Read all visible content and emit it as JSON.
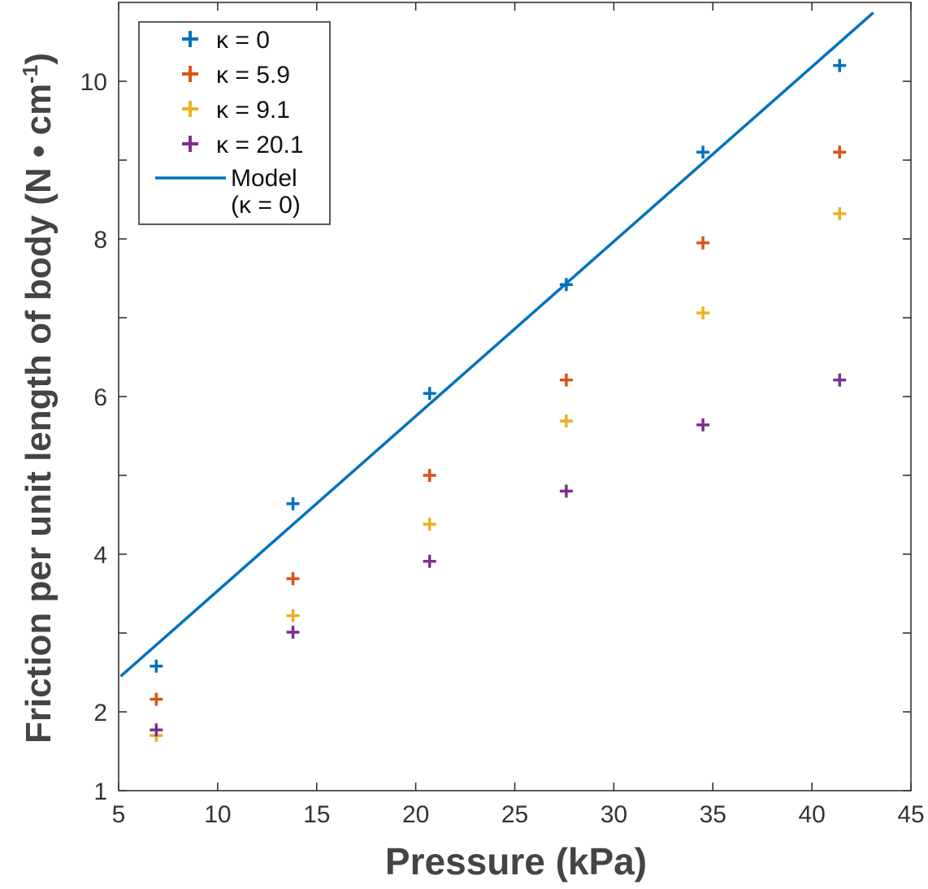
{
  "chart_data": {
    "type": "scatter",
    "xlabel": "Pressure (kPa)",
    "ylabel": "Friction per unit length of body (N • cm",
    "ylabel_superscript": "-1",
    "ylabel_close": ")",
    "xlim": [
      5,
      45
    ],
    "ylim": [
      1,
      11
    ],
    "xticks": [
      5,
      10,
      15,
      20,
      25,
      30,
      35,
      40,
      45
    ],
    "xtick_labels": [
      "5",
      "10",
      "15",
      "20",
      "25",
      "30",
      "35",
      "40",
      "45"
    ],
    "yticks": [
      1,
      2,
      4,
      6,
      8,
      10
    ],
    "ytick_labels": [
      "1",
      "2",
      "4",
      "6",
      "8",
      "10"
    ],
    "yminor_ticks": [
      3,
      5,
      7,
      9
    ],
    "legend_position": "top-left",
    "series": [
      {
        "name": "κ = 0",
        "color": "#0072BD",
        "marker": "plus",
        "x": [
          6.9,
          13.8,
          20.7,
          27.6,
          34.5,
          41.4
        ],
        "y": [
          2.58,
          4.64,
          6.04,
          7.42,
          9.1,
          10.2
        ]
      },
      {
        "name": "κ = 5.9",
        "color": "#D95319",
        "marker": "plus",
        "x": [
          6.9,
          13.8,
          20.7,
          27.6,
          34.5,
          41.4
        ],
        "y": [
          2.16,
          3.69,
          5.0,
          6.21,
          7.95,
          9.1
        ]
      },
      {
        "name": "κ = 9.1",
        "color": "#EDB120",
        "marker": "plus",
        "x": [
          6.9,
          13.8,
          20.7,
          27.6,
          34.5,
          41.4
        ],
        "y": [
          1.7,
          3.22,
          4.38,
          5.69,
          7.06,
          8.32
        ]
      },
      {
        "name": "κ = 20.1",
        "color": "#7E2F8E",
        "marker": "plus",
        "x": [
          6.9,
          13.8,
          20.7,
          27.6,
          34.5,
          41.4
        ],
        "y": [
          1.77,
          3.01,
          3.91,
          4.8,
          5.64,
          6.21
        ]
      }
    ],
    "model": {
      "name_line1": "Model",
      "name_line2": "(κ = 0)",
      "color": "#0072BD",
      "x": [
        5.1,
        43.1
      ],
      "y": [
        2.45,
        10.87
      ]
    }
  }
}
